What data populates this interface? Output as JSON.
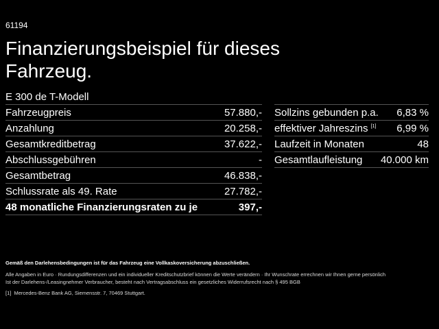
{
  "code": "61194",
  "headline": "Finanzierungsbeispiel für dieses Fahrzeug.",
  "model": "E 300 de T-Modell",
  "left_rows": [
    {
      "label": "Fahrzeugpreis",
      "value": "57.880,-"
    },
    {
      "label": "Anzahlung",
      "value": "20.258,-"
    },
    {
      "label": "Gesamtkreditbetrag",
      "value": "37.622,-"
    },
    {
      "label": "Abschlussgebühren",
      "value": "-"
    },
    {
      "label": "Gesamtbetrag",
      "value": "46.838,-"
    },
    {
      "label": "Schlussrate als 49. Rate",
      "value": "27.782,-"
    },
    {
      "label": "48 monatliche Finanzierungsraten zu je",
      "value": "397,-"
    }
  ],
  "right_rows": [
    {
      "label": "Sollzins gebunden p.a.",
      "value": "6,83 %"
    },
    {
      "label": "effektiver Jahreszins",
      "sup": "[1]",
      "value": "6,99 %"
    },
    {
      "label": "Laufzeit in Monaten",
      "value": "48"
    },
    {
      "label": "Gesamtlaufleistung",
      "value": "40.000 km"
    }
  ],
  "notes": {
    "bold": "Gemäß den Darlehensbedingungen ist für das Fahrzeug eine Vollkaskoversicherung abzuschließen.",
    "line1": "Alle Angaben in Euro · Rundungsdifferenzen und ein individueller Kreditschutzbrief können die Werte verändern · Ihr Wunschrate errechnen wir Ihnen gerne persönlich",
    "line2": "Ist der Darlehens-/Leasingnehmer Verbraucher, besteht nach Vertragsabschluss ein gesetzliches Widerrufsrecht nach § 495 BGB",
    "footnote_mark": "[1]",
    "footnote": "Mercedes-Benz Bank AG, Siemensstr. 7, 70469 Stuttgart."
  }
}
